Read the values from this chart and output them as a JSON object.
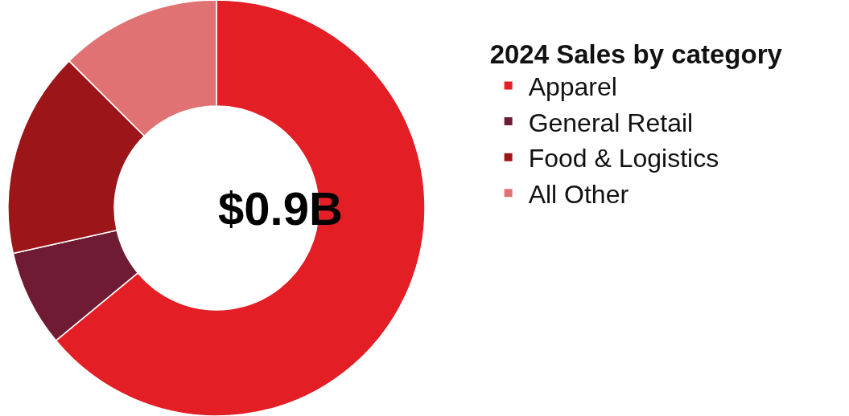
{
  "chart_data": {
    "type": "donut",
    "legend_title": "2024 Sales by category",
    "annotations": [
      "$0.9B"
    ],
    "legend": "right",
    "categories": [
      "Apparel",
      "General Retail",
      "Food & Logistics",
      "All Other"
    ],
    "values": [
      64,
      7.5,
      16,
      12.5
    ],
    "colors": [
      "#e31e25",
      "#6f1b33",
      "#9c1519",
      "#e07274"
    ]
  }
}
